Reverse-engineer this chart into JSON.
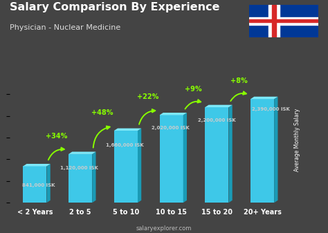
{
  "title": "Salary Comparison By Experience",
  "subtitle": "Physician - Nuclear Medicine",
  "categories": [
    "< 2 Years",
    "2 to 5",
    "5 to 10",
    "10 to 15",
    "15 to 20",
    "20+ Years"
  ],
  "values": [
    841000,
    1120000,
    1660000,
    2020000,
    2200000,
    2390000
  ],
  "salary_labels": [
    "841,000 ISK",
    "1,120,000 ISK",
    "1,660,000 ISK",
    "2,020,000 ISK",
    "2,200,000 ISK",
    "2,390,000 ISK"
  ],
  "pct_labels": [
    "+34%",
    "+48%",
    "+22%",
    "+9%",
    "+8%"
  ],
  "bar_color_front": "#3ec8e8",
  "bar_color_top": "#7de8f8",
  "bar_color_side": "#1a9ab5",
  "bg_color": "#444444",
  "title_color": "#ffffff",
  "subtitle_color": "#dddddd",
  "label_color": "#cccccc",
  "pct_color": "#88ff00",
  "arrow_color": "#88ff00",
  "ylabel": "Average Monthly Salary",
  "source": "salaryexplorer.com",
  "ylim": [
    0,
    2900000
  ],
  "bar_width": 0.52,
  "dx3d": 0.08,
  "dy3d": 55000,
  "flag_colors": {
    "bg": "#003897",
    "cross_white": "#ffffff",
    "cross_red": "#D72828"
  }
}
